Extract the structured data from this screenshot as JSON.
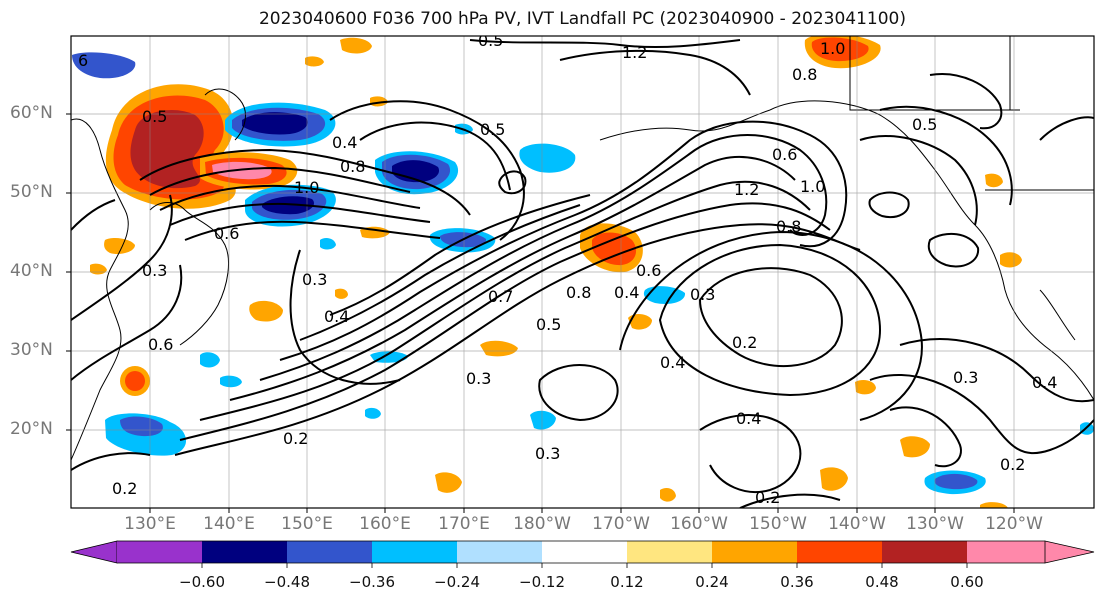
{
  "title": "2023040600 F036 700 hPa PV, IVT Landfall PC (2023040900 - 2023041100)",
  "lat_labels": [
    "60°N",
    "50°N",
    "40°N",
    "30°N",
    "20°N"
  ],
  "lon_labels": [
    "130°E",
    "140°E",
    "150°E",
    "160°E",
    "170°E",
    "180°W",
    "170°W",
    "160°W",
    "150°W",
    "140°W",
    "130°W",
    "120°W"
  ],
  "colorbar": {
    "ticks": [
      "−0.60",
      "−0.48",
      "−0.36",
      "−0.24",
      "−0.12",
      "0.12",
      "0.24",
      "0.36",
      "0.48",
      "0.60"
    ],
    "colors": [
      "#9932cc",
      "#00007f",
      "#3355cc",
      "#00bfff",
      "#b0e0ff",
      "#ffffff",
      "#ffe680",
      "#ffa500",
      "#ff4500",
      "#b22222",
      "#ff88aa"
    ]
  },
  "contour_labels": [
    "6",
    "0.5",
    "0.5",
    "1.2",
    "1.0",
    "0.8",
    "0.5",
    "0.6",
    "1.0",
    "1.2",
    "0.8",
    "0.3",
    "0.3",
    "0.4",
    "0.6",
    "0.7",
    "0.5",
    "0.8",
    "0.6",
    "0.4",
    "0.3",
    "0.2",
    "0.4",
    "0.3",
    "0.4",
    "0.2",
    "0.3",
    "0.2",
    "0.2",
    "0.4",
    "0.2",
    "0.5",
    "0.4",
    "1.0",
    "0.8",
    "0.6",
    "0.3"
  ]
}
